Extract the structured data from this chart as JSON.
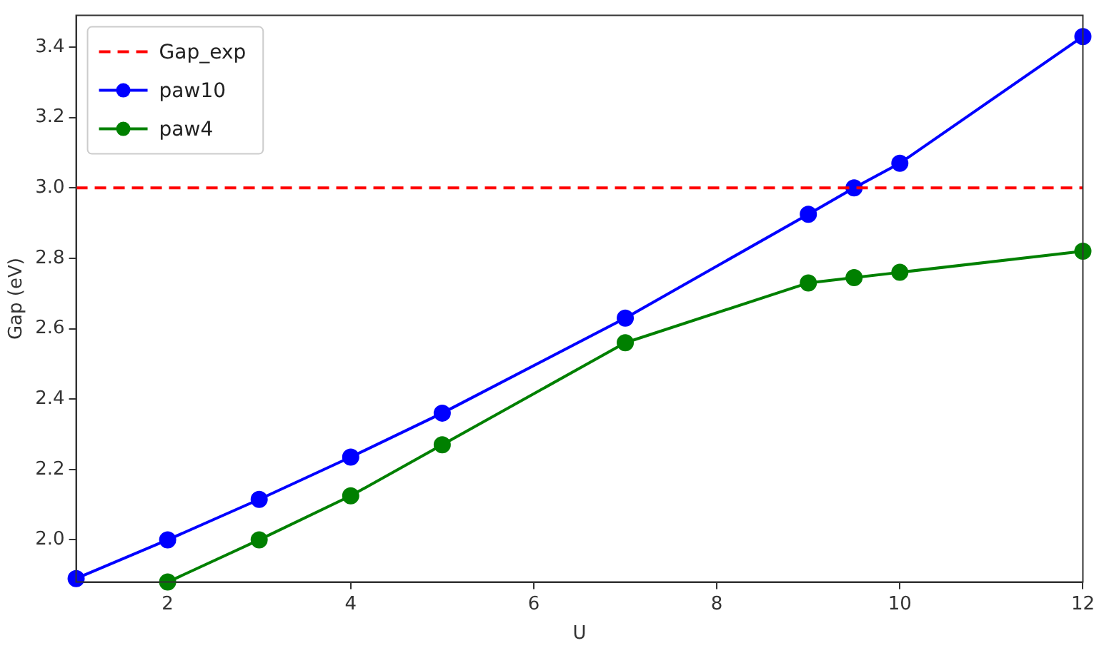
{
  "chart_data": {
    "type": "line",
    "xlabel": "U",
    "ylabel": "Gap (eV)",
    "legend": "top left",
    "marker": "circle",
    "grid": false,
    "x": [
      1,
      2,
      3,
      4,
      5,
      7,
      9,
      9.5,
      10,
      12
    ],
    "series": [
      {
        "name": "paw10",
        "color": "#0000ff",
        "values": [
          1.89,
          2.0,
          2.115,
          2.235,
          2.36,
          2.63,
          2.925,
          3.0,
          3.07,
          3.43
        ]
      },
      {
        "name": "paw4",
        "color": "#008000",
        "x": [
          2,
          3,
          4,
          5,
          7,
          9,
          9.5,
          10,
          12
        ],
        "values": [
          1.88,
          2.0,
          2.125,
          2.27,
          2.56,
          2.73,
          2.745,
          2.76,
          2.82
        ]
      }
    ],
    "ref_lines": [
      {
        "axis": "y",
        "value": 3.0,
        "label": "Gap_exp",
        "color": "#ff0000",
        "line_style": "dashed"
      }
    ],
    "xlim": [
      1,
      12
    ],
    "xticks": [
      2,
      4,
      6,
      8,
      10,
      12
    ],
    "ylim": [
      1.88,
      3.49
    ],
    "yticks": [
      {
        "value": 2,
        "label": "2.0"
      },
      {
        "value": 2.2,
        "label": "2.2"
      },
      {
        "value": 2.4,
        "label": "2.4"
      },
      {
        "value": 2.6,
        "label": "2.6"
      },
      {
        "value": 2.8,
        "label": "2.8"
      },
      {
        "value": 3,
        "label": "3.0"
      },
      {
        "value": 3.2,
        "label": "3.2"
      },
      {
        "value": 3.4,
        "label": "3.4"
      }
    ]
  }
}
